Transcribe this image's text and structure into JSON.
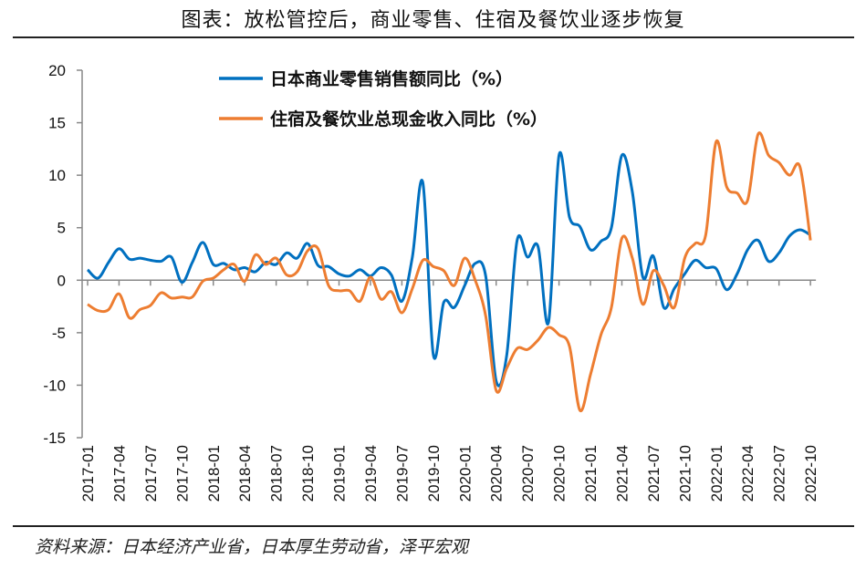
{
  "title": "图表：放松管控后，商业零售、住宿及餐饮业逐步恢复",
  "source": "资料来源：日本经济产业省，日本厚生劳动省，泽平宏观",
  "chart_data": {
    "type": "line",
    "title": "图表：放松管控后，商业零售、住宿及餐饮业逐步恢复",
    "xlabel": "",
    "ylabel": "",
    "ylim": [
      -15,
      20
    ],
    "yticks": [
      20,
      15,
      10,
      5,
      0,
      -5,
      -10,
      -15
    ],
    "x_tick_labels": [
      "2017-01",
      "2017-04",
      "2017-07",
      "2017-10",
      "2018-01",
      "2018-04",
      "2018-07",
      "2018-10",
      "2019-01",
      "2019-04",
      "2019-07",
      "2019-10",
      "2020-01",
      "2020-04",
      "2020-07",
      "2020-10",
      "2021-01",
      "2021-04",
      "2021-07",
      "2021-10",
      "2022-01",
      "2022-04",
      "2022-07",
      "2022-10"
    ],
    "x_start": "2017-01",
    "x_end": "2022-10",
    "frequency": "monthly",
    "legend_position": "top-center",
    "grid": false,
    "series": [
      {
        "name": "日本商业零售销售额同比（%）",
        "color": "#0070C0",
        "values": [
          1.0,
          0.2,
          1.7,
          3.0,
          2.0,
          2.1,
          1.9,
          1.8,
          2.2,
          -0.2,
          1.7,
          3.6,
          1.5,
          1.6,
          1.0,
          1.2,
          0.8,
          1.7,
          1.5,
          2.6,
          2.1,
          3.5,
          1.4,
          1.3,
          0.6,
          0.4,
          1.0,
          0.4,
          1.2,
          0.5,
          -2.0,
          2.2,
          9.3,
          -7.1,
          -2.1,
          -2.6,
          -0.5,
          1.6,
          0.4,
          -9.6,
          -7.2,
          3.8,
          2.2,
          3.2,
          -4.0,
          11.9,
          6.0,
          5.1,
          2.9,
          3.7,
          5.0,
          11.9,
          8.4,
          0.3,
          2.3,
          -2.6,
          -0.8,
          0.6,
          1.9,
          1.2,
          1.1,
          -0.9,
          0.6,
          2.9,
          3.8,
          1.8,
          2.6,
          4.2,
          4.8,
          4.3
        ]
      },
      {
        "name": "住宿及餐饮业总现金收入同比（%）",
        "color": "#ED7D31",
        "values": [
          -2.3,
          -2.9,
          -2.8,
          -1.3,
          -3.6,
          -2.8,
          -2.4,
          -1.2,
          -1.7,
          -1.6,
          -1.6,
          -0.1,
          0.2,
          1.0,
          1.5,
          -0.1,
          2.4,
          1.5,
          2.1,
          0.5,
          0.8,
          2.8,
          3.0,
          -0.5,
          -1.0,
          -1.0,
          -2.0,
          0.3,
          -1.8,
          -1.1,
          -3.1,
          -0.8,
          1.9,
          1.3,
          0.9,
          -0.5,
          2.1,
          0.0,
          -3.4,
          -10.5,
          -8.4,
          -6.5,
          -6.6,
          -5.7,
          -4.5,
          -5.2,
          -6.3,
          -12.4,
          -9.0,
          -5.2,
          -2.6,
          4.0,
          2.1,
          -2.3,
          0.9,
          -0.5,
          -2.6,
          2.1,
          3.5,
          4.3,
          13.2,
          8.9,
          8.3,
          7.6,
          13.9,
          11.9,
          11.2,
          10.0,
          10.8,
          3.8
        ]
      }
    ]
  }
}
